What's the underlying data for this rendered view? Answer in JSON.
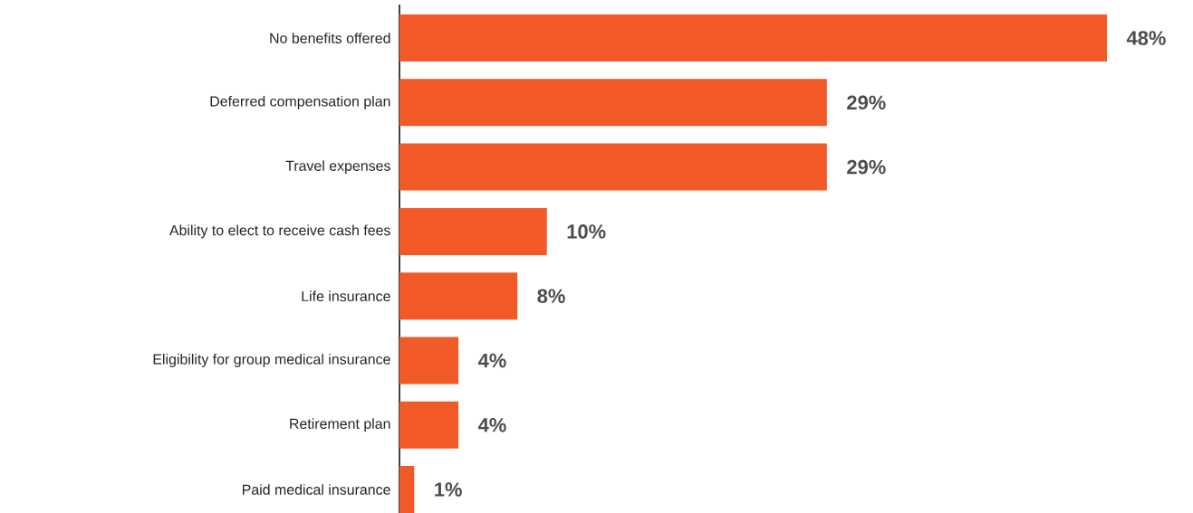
{
  "chart_data": {
    "type": "bar",
    "orientation": "horizontal",
    "categories": [
      "No benefits offered",
      "Deferred compensation plan",
      "Travel expenses",
      "Ability to elect to receive cash fees",
      "Life insurance",
      "Eligibility for group medical insurance",
      "Retirement plan",
      "Paid medical insurance"
    ],
    "values": [
      48,
      29,
      29,
      10,
      8,
      4,
      4,
      1
    ],
    "color": "#f15a27",
    "value_labels": [
      "48%",
      "29%",
      "29%",
      "10%",
      "8%",
      "4%",
      "4%",
      "1%"
    ]
  }
}
